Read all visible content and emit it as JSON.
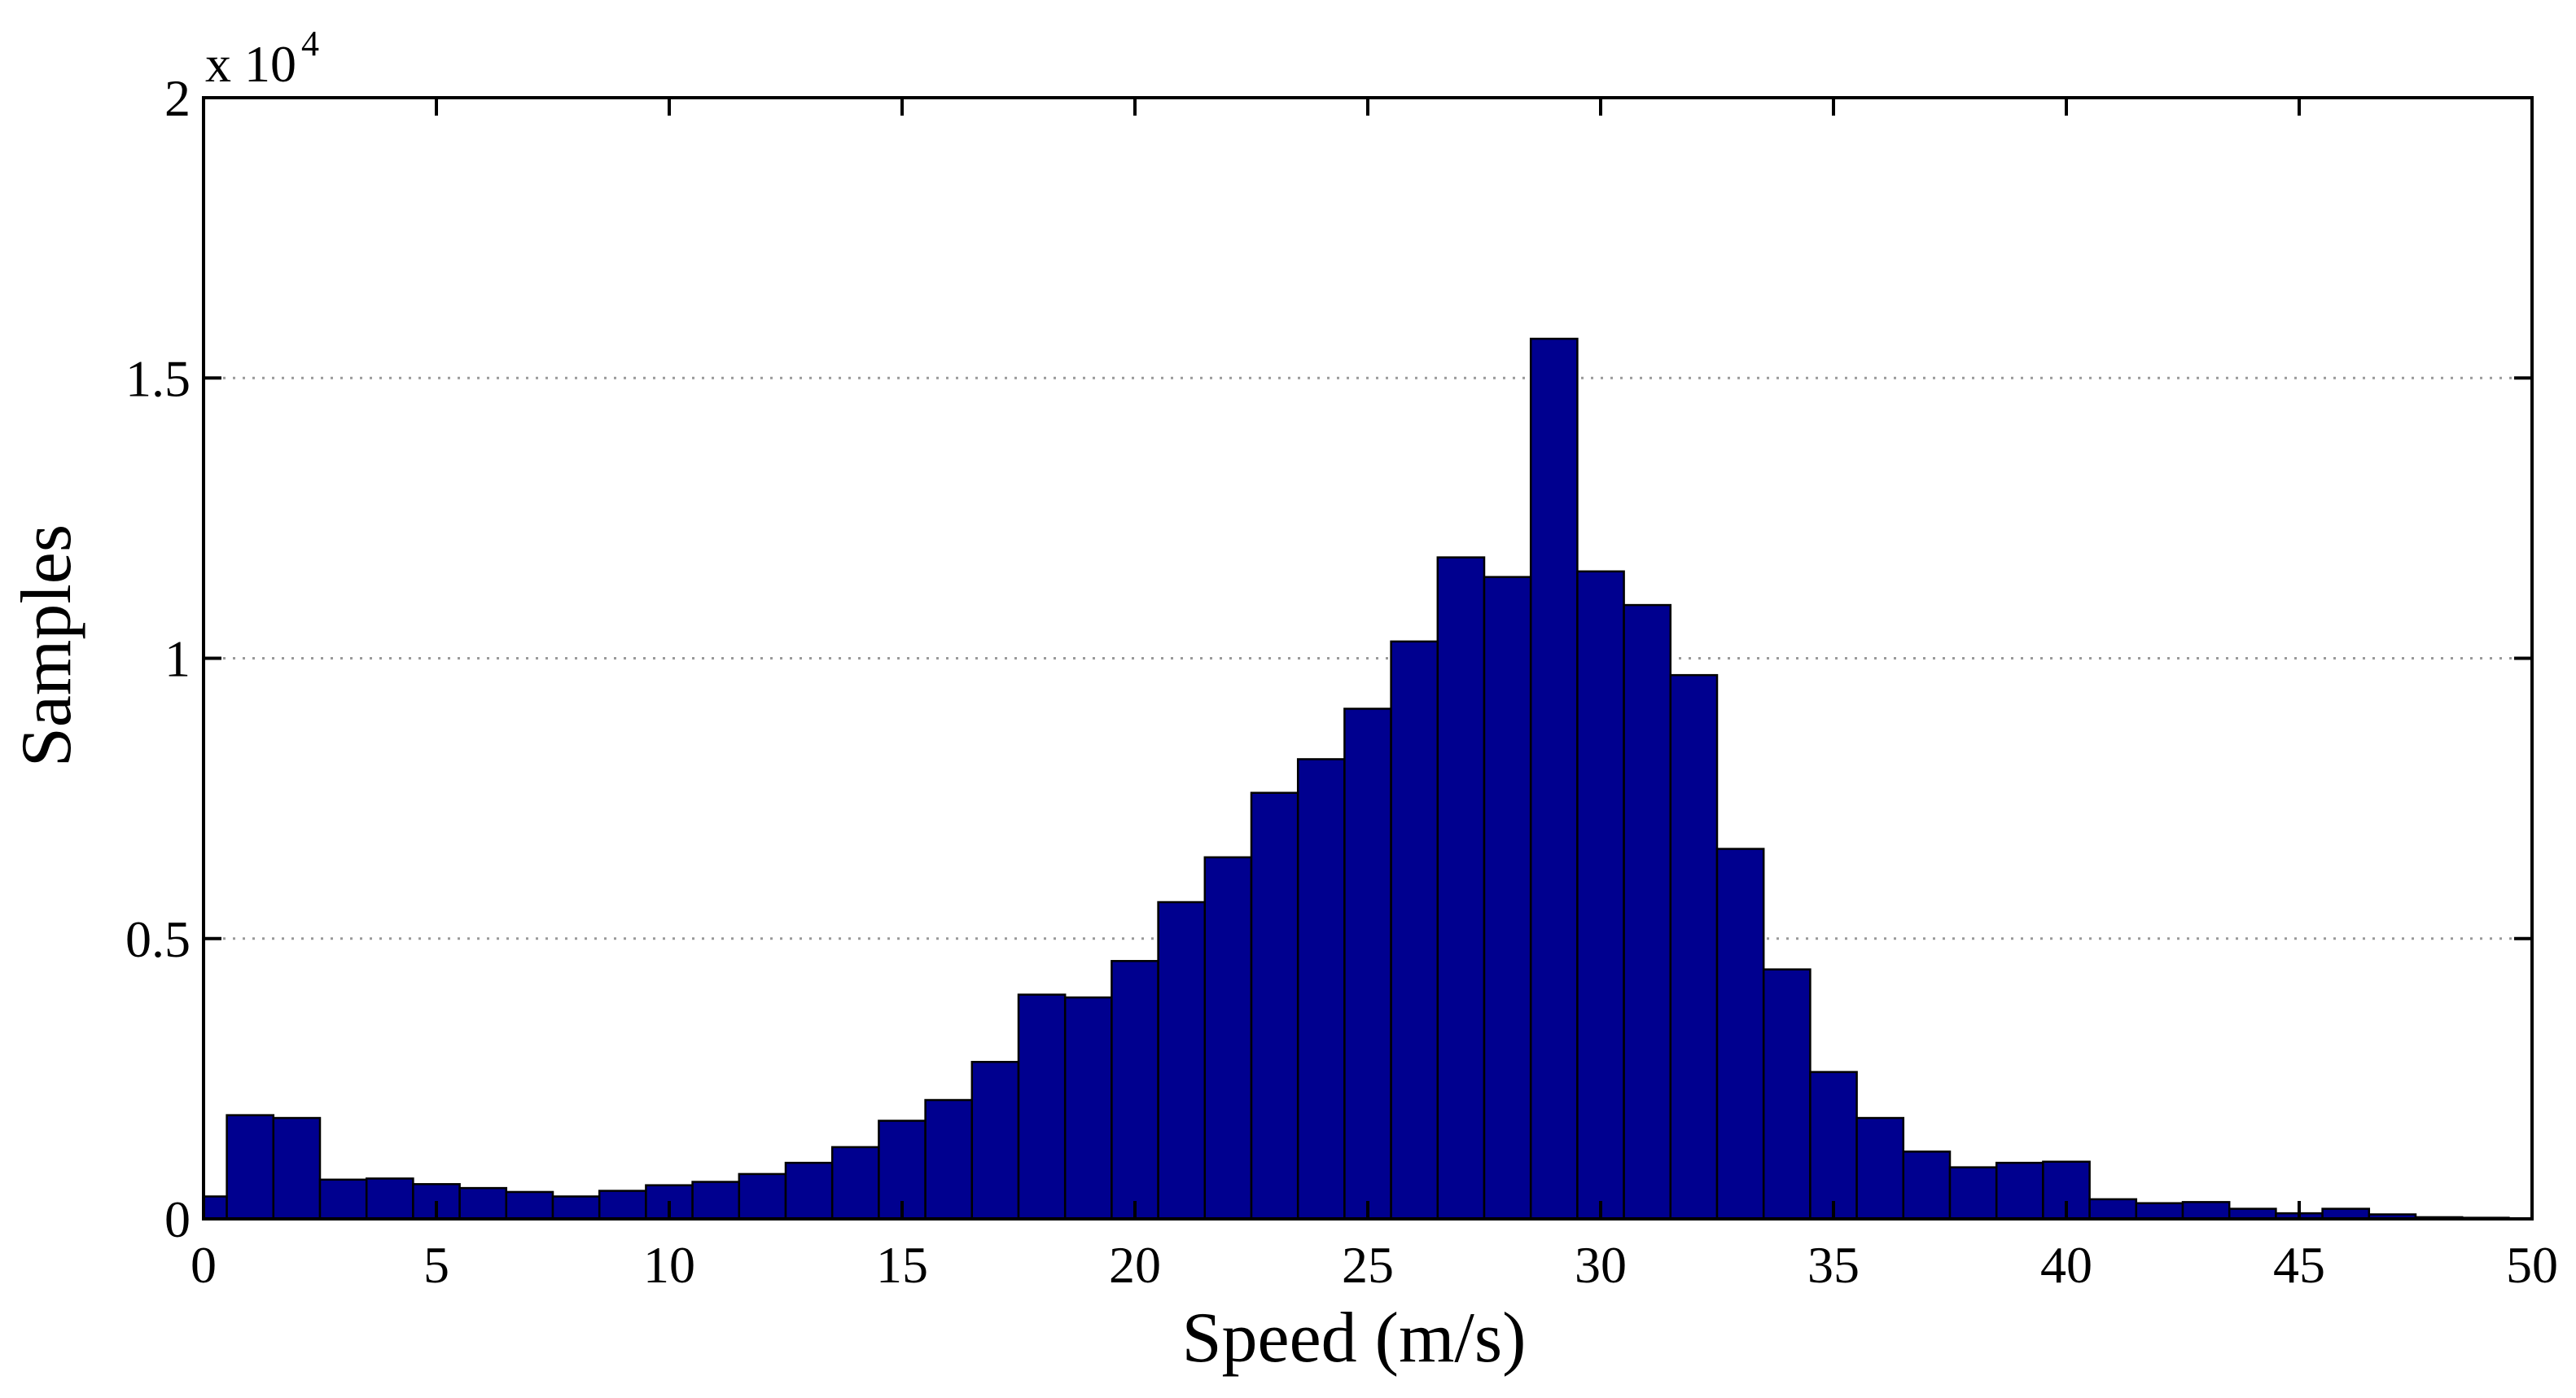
{
  "chart_data": {
    "type": "bar",
    "title": "",
    "xlabel": "Speed (m/s)",
    "ylabel": "Samples",
    "y_multiplier_base": "x 10",
    "y_multiplier_exponent": "4",
    "xlim": [
      0,
      50
    ],
    "ylim": [
      0,
      2
    ],
    "xticks": [
      0,
      5,
      10,
      15,
      20,
      25,
      30,
      35,
      40,
      45,
      50
    ],
    "xtick_labels": [
      "0",
      "5",
      "10",
      "15",
      "20",
      "25",
      "30",
      "35",
      "40",
      "45",
      "50"
    ],
    "yticks": [
      0,
      0.5,
      1,
      1.5,
      2
    ],
    "ytick_labels": [
      "0",
      "0.5",
      "1",
      "1.5",
      "2"
    ],
    "grid": "horizontal-dotted",
    "bar_color": "#00008F",
    "bin_width": 1,
    "bin_starts": [
      -0.5,
      0.5,
      1.5,
      2.5,
      3.5,
      4.5,
      5.5,
      6.5,
      7.5,
      8.5,
      9.5,
      10.5,
      11.5,
      12.5,
      13.5,
      14.5,
      15.5,
      16.5,
      17.5,
      18.5,
      19.5,
      20.5,
      21.5,
      22.5,
      23.5,
      24.5,
      25.5,
      26.5,
      27.5,
      28.5,
      29.5,
      30.5,
      31.5,
      32.5,
      33.5,
      34.5,
      35.5,
      36.5,
      37.5,
      38.5,
      39.5,
      40.5,
      41.5,
      42.5,
      43.5,
      44.5,
      45.5,
      46.5,
      47.5,
      48.5
    ],
    "values": [
      0.04,
      0.185,
      0.18,
      0.07,
      0.072,
      0.062,
      0.055,
      0.048,
      0.04,
      0.05,
      0.06,
      0.066,
      0.08,
      0.1,
      0.128,
      0.175,
      0.212,
      0.28,
      0.4,
      0.395,
      0.46,
      0.565,
      0.645,
      0.76,
      0.82,
      0.91,
      1.03,
      1.18,
      1.145,
      1.57,
      1.155,
      1.095,
      0.97,
      0.66,
      0.445,
      0.262,
      0.18,
      0.12,
      0.092,
      0.1,
      0.102,
      0.035,
      0.028,
      0.03,
      0.018,
      0.01,
      0.018,
      0.008,
      0.003,
      0.002
    ]
  }
}
